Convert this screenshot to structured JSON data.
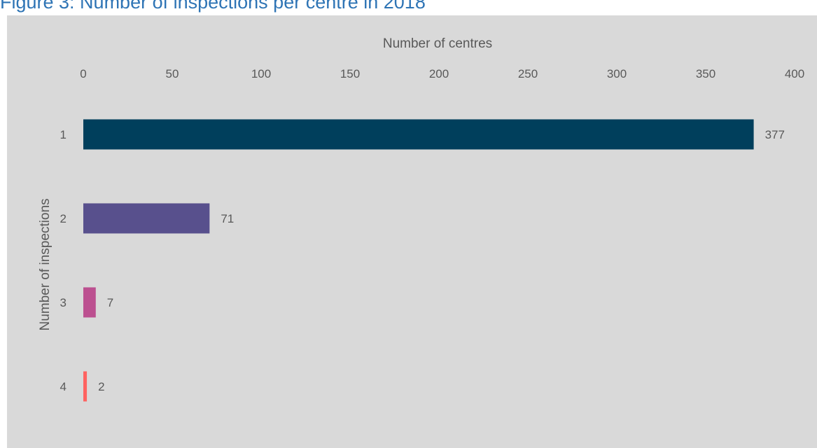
{
  "title": "Figure 3: Number of inspections per centre in 2018",
  "chart_data": {
    "type": "bar",
    "orientation": "horizontal",
    "title": "Figure 3: Number of inspections per centre in 2018",
    "xlabel": "Number of centres",
    "ylabel": "Number of inspections",
    "xlim": [
      0,
      400
    ],
    "x_ticks": [
      "0",
      "50",
      "100",
      "150",
      "200",
      "250",
      "300",
      "350",
      "400"
    ],
    "categories": [
      "1",
      "2",
      "3",
      "4"
    ],
    "values": [
      377,
      71,
      7,
      2
    ],
    "data_labels": [
      "377",
      "71",
      "7",
      "2"
    ],
    "bar_colors": [
      "#003f5c",
      "#58508d",
      "#bc5090",
      "#ff6361"
    ],
    "grid": false,
    "legend": "none",
    "background": "#d9d9d9",
    "x_axis_position": "top"
  }
}
